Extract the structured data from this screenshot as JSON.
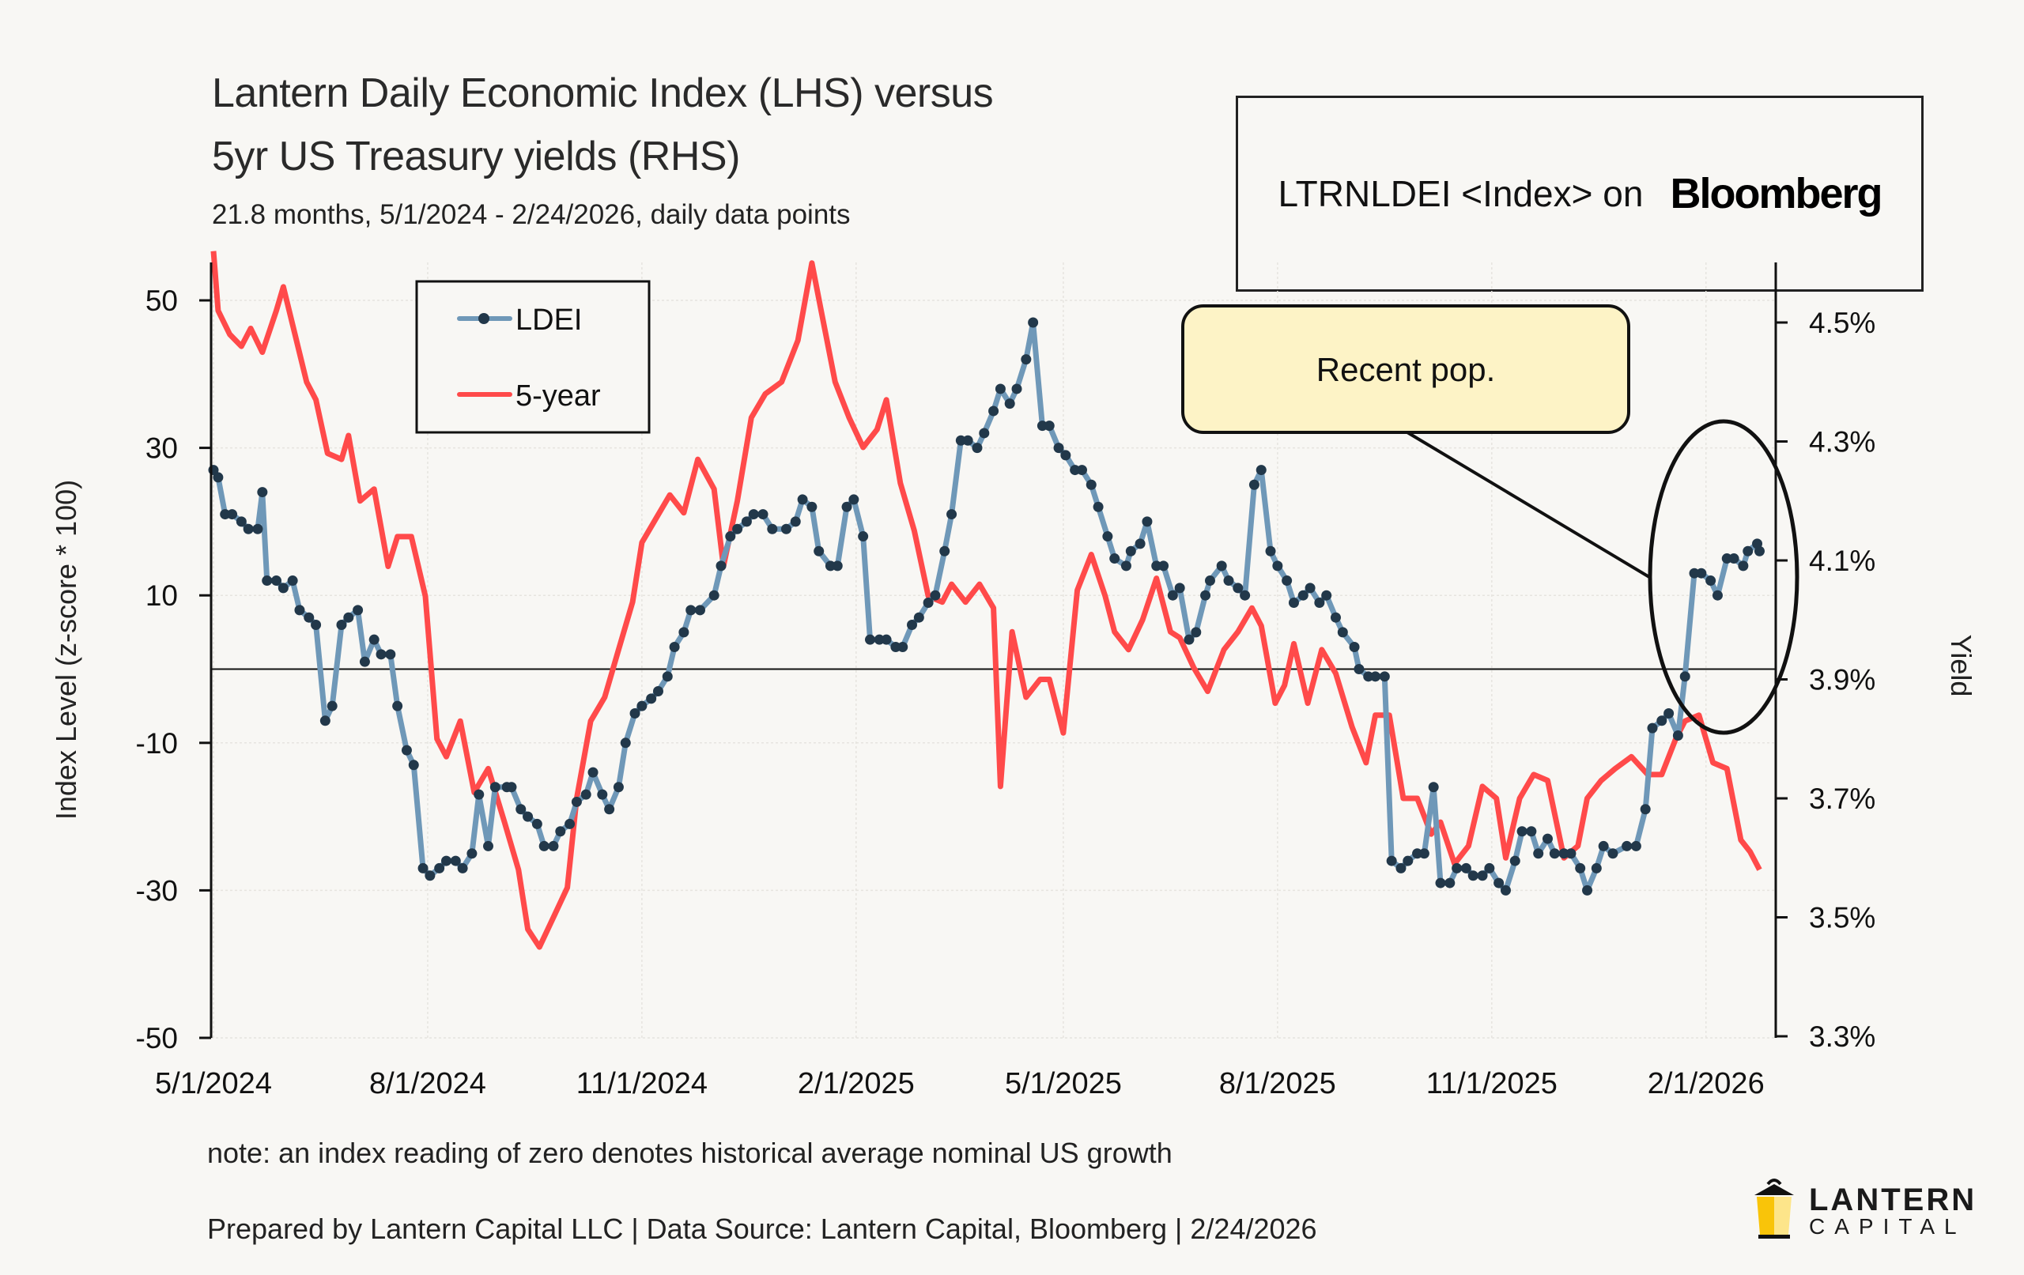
{
  "header": {
    "title_line1": "Lantern Daily Economic Index (LHS) versus",
    "title_line2": "5yr US Treasury yields (RHS)",
    "subtitle": "21.8 months, 5/1/2024 - 2/24/2026, daily data points"
  },
  "bloomberg_box": {
    "ticker": "LTRNLDEI <Index> on",
    "brand": "Bloomberg"
  },
  "annotation": {
    "callout_text": "Recent pop.",
    "callout_fill": "#fdf3c6"
  },
  "footer": {
    "note": "note: an index reading of zero denotes historical average nominal US growth",
    "prepared_by": "Prepared by Lantern Capital LLC | Data Source: Lantern Capital, Bloomberg | 2/24/2026"
  },
  "logo": {
    "name": "LANTERN",
    "sub": "CAPITAL"
  },
  "colors": {
    "ldei_line": "#6f98b8",
    "ldei_marker": "#22384a",
    "yield_line": "#ff4a4a",
    "background": "#f8f7f4"
  },
  "chart_data": {
    "type": "line",
    "title": "Lantern Daily Economic Index (LHS) versus 5yr US Treasury yields (RHS)",
    "xlabel": "",
    "ylabel": "Index Level (z-score * 100)",
    "y2label": "Yield",
    "x_start": "2024-05-01",
    "x_end": "2026-02-24",
    "x_ticks": [
      "5/1/2024",
      "8/1/2024",
      "11/1/2024",
      "2/1/2025",
      "5/1/2025",
      "8/1/2025",
      "11/1/2025",
      "2/1/2026"
    ],
    "x_tick_dates": [
      "2024-05-01",
      "2024-08-01",
      "2024-11-01",
      "2025-02-01",
      "2025-05-01",
      "2025-08-01",
      "2025-11-01",
      "2026-02-01"
    ],
    "ylim": [
      -50,
      55
    ],
    "y_ticks": [
      "50",
      "30",
      "10",
      "-10",
      "-30",
      "-50"
    ],
    "y_tick_values": [
      50,
      30,
      10,
      -10,
      -30,
      -50
    ],
    "y2lim": [
      3.3,
      4.62
    ],
    "y2_ticks": [
      "4.5%",
      "4.3%",
      "4.1%",
      "3.9%",
      "3.7%",
      "3.5%",
      "3.3%"
    ],
    "y2_tick_values": [
      4.5,
      4.3,
      4.1,
      3.9,
      3.7,
      3.5,
      3.3
    ],
    "zero_line": 0,
    "grid": true,
    "legend": {
      "position": "top-left",
      "entries": [
        "LDEI",
        "5-year"
      ]
    },
    "series": [
      {
        "name": "LDEI",
        "axis": "left",
        "dates": [
          "2024-05-01",
          "2024-05-03",
          "2024-05-06",
          "2024-05-09",
          "2024-05-13",
          "2024-05-16",
          "2024-05-20",
          "2024-05-22",
          "2024-05-24",
          "2024-05-28",
          "2024-05-31",
          "2024-06-04",
          "2024-06-07",
          "2024-06-11",
          "2024-06-14",
          "2024-06-18",
          "2024-06-21",
          "2024-06-25",
          "2024-06-28",
          "2024-07-02",
          "2024-07-05",
          "2024-07-09",
          "2024-07-12",
          "2024-07-16",
          "2024-07-19",
          "2024-07-23",
          "2024-07-26",
          "2024-07-30",
          "2024-08-02",
          "2024-08-06",
          "2024-08-09",
          "2024-08-13",
          "2024-08-16",
          "2024-08-20",
          "2024-08-23",
          "2024-08-27",
          "2024-08-30",
          "2024-09-04",
          "2024-09-06",
          "2024-09-10",
          "2024-09-13",
          "2024-09-17",
          "2024-09-20",
          "2024-09-24",
          "2024-09-27",
          "2024-10-01",
          "2024-10-04",
          "2024-10-08",
          "2024-10-11",
          "2024-10-15",
          "2024-10-18",
          "2024-10-22",
          "2024-10-25",
          "2024-10-29",
          "2024-11-01",
          "2024-11-05",
          "2024-11-08",
          "2024-11-12",
          "2024-11-15",
          "2024-11-19",
          "2024-11-22",
          "2024-11-26",
          "2024-12-02",
          "2024-12-05",
          "2024-12-09",
          "2024-12-12",
          "2024-12-16",
          "2024-12-19",
          "2024-12-23",
          "2024-12-27",
          "2025-01-02",
          "2025-01-06",
          "2025-01-09",
          "2025-01-13",
          "2025-01-16",
          "2025-01-21",
          "2025-01-24",
          "2025-01-28",
          "2025-01-31",
          "2025-02-04",
          "2025-02-07",
          "2025-02-11",
          "2025-02-14",
          "2025-02-18",
          "2025-02-21",
          "2025-02-25",
          "2025-02-28",
          "2025-03-04",
          "2025-03-07",
          "2025-03-11",
          "2025-03-14",
          "2025-03-18",
          "2025-03-21",
          "2025-03-25",
          "2025-03-28",
          "2025-04-01",
          "2025-04-04",
          "2025-04-08",
          "2025-04-11",
          "2025-04-15",
          "2025-04-18",
          "2025-04-22",
          "2025-04-25",
          "2025-04-29",
          "2025-05-02",
          "2025-05-06",
          "2025-05-09",
          "2025-05-13",
          "2025-05-16",
          "2025-05-20",
          "2025-05-23",
          "2025-05-28",
          "2025-05-30",
          "2025-06-03",
          "2025-06-06",
          "2025-06-10",
          "2025-06-13",
          "2025-06-17",
          "2025-06-20",
          "2025-06-24",
          "2025-06-27",
          "2025-07-01",
          "2025-07-03",
          "2025-07-08",
          "2025-07-11",
          "2025-07-15",
          "2025-07-18",
          "2025-07-22",
          "2025-07-25",
          "2025-07-29",
          "2025-08-01",
          "2025-08-05",
          "2025-08-08",
          "2025-08-12",
          "2025-08-15",
          "2025-08-19",
          "2025-08-22",
          "2025-08-26",
          "2025-08-29",
          "2025-09-03",
          "2025-09-05",
          "2025-09-09",
          "2025-09-12",
          "2025-09-16",
          "2025-09-19",
          "2025-09-23",
          "2025-09-26",
          "2025-09-30",
          "2025-10-03",
          "2025-10-07",
          "2025-10-10",
          "2025-10-14",
          "2025-10-17",
          "2025-10-21",
          "2025-10-24",
          "2025-10-28",
          "2025-10-31",
          "2025-11-04",
          "2025-11-07",
          "2025-11-11",
          "2025-11-14",
          "2025-11-18",
          "2025-11-21",
          "2025-11-25",
          "2025-11-28",
          "2025-12-02",
          "2025-12-05",
          "2025-12-09",
          "2025-12-12",
          "2025-12-16",
          "2025-12-19",
          "2025-12-23",
          "2025-12-29",
          "2026-01-02",
          "2026-01-06",
          "2026-01-09",
          "2026-01-13",
          "2026-01-16",
          "2026-01-20",
          "2026-01-23",
          "2026-01-27",
          "2026-01-30",
          "2026-02-03",
          "2026-02-06",
          "2026-02-10",
          "2026-02-13",
          "2026-02-17",
          "2026-02-19",
          "2026-02-23",
          "2026-02-24"
        ],
        "values": [
          27,
          26,
          21,
          21,
          20,
          19,
          19,
          24,
          12,
          12,
          11,
          12,
          8,
          7,
          6,
          -7,
          -5,
          6,
          7,
          8,
          1,
          4,
          2,
          2,
          -5,
          -11,
          -13,
          -27,
          -28,
          -27,
          -26,
          -26,
          -27,
          -25,
          -17,
          -24,
          -16,
          -16,
          -16,
          -19,
          -20,
          -21,
          -24,
          -24,
          -22,
          -21,
          -18,
          -17,
          -14,
          -17,
          -19,
          -16,
          -10,
          -6,
          -5,
          -4,
          -3,
          -1,
          3,
          5,
          8,
          8,
          10,
          14,
          18,
          19,
          20,
          21,
          21,
          19,
          19,
          20,
          23,
          22,
          16,
          14,
          14,
          22,
          23,
          18,
          4,
          4,
          4,
          3,
          3,
          6,
          7,
          9,
          10,
          16,
          21,
          31,
          31,
          30,
          32,
          35,
          38,
          36,
          38,
          42,
          47,
          33,
          33,
          30,
          29,
          27,
          27,
          25,
          22,
          18,
          15,
          14,
          16,
          17,
          20,
          14,
          14,
          10,
          11,
          4,
          5,
          10,
          12,
          14,
          12,
          11,
          10,
          25,
          27,
          16,
          14,
          12,
          9,
          10,
          11,
          9,
          10,
          7,
          5,
          3,
          0,
          -1,
          -1,
          -1,
          -26,
          -27,
          -26,
          -25,
          -25,
          -16,
          -29,
          -29,
          -27,
          -27,
          -28,
          -28,
          -27,
          -29,
          -30,
          -26,
          -22,
          -22,
          -25,
          -23,
          -25,
          -25,
          -25,
          -27,
          -30,
          -27,
          -24,
          -25,
          -24,
          -24,
          -19,
          -8,
          -7,
          -6,
          -9,
          -1,
          13,
          13,
          12,
          10,
          15,
          15,
          14,
          16,
          17,
          16,
          18,
          21,
          21
        ],
        "marker": "dot"
      },
      {
        "name": "5-year",
        "axis": "right",
        "dates": [
          "2024-05-01",
          "2024-05-03",
          "2024-05-08",
          "2024-05-13",
          "2024-05-17",
          "2024-05-22",
          "2024-05-28",
          "2024-05-31",
          "2024-06-05",
          "2024-06-10",
          "2024-06-14",
          "2024-06-19",
          "2024-06-25",
          "2024-06-28",
          "2024-07-03",
          "2024-07-09",
          "2024-07-15",
          "2024-07-19",
          "2024-07-25",
          "2024-07-31",
          "2024-08-05",
          "2024-08-09",
          "2024-08-15",
          "2024-08-21",
          "2024-08-27",
          "2024-09-03",
          "2024-09-09",
          "2024-09-13",
          "2024-09-18",
          "2024-09-24",
          "2024-09-30",
          "2024-10-04",
          "2024-10-10",
          "2024-10-16",
          "2024-10-22",
          "2024-10-28",
          "2024-11-01",
          "2024-11-07",
          "2024-11-13",
          "2024-11-19",
          "2024-11-25",
          "2024-12-02",
          "2024-12-06",
          "2024-12-12",
          "2024-12-18",
          "2024-12-24",
          "2024-12-31",
          "2025-01-07",
          "2025-01-13",
          "2025-01-17",
          "2025-01-23",
          "2025-01-29",
          "2025-02-04",
          "2025-02-10",
          "2025-02-14",
          "2025-02-20",
          "2025-02-26",
          "2025-03-04",
          "2025-03-10",
          "2025-03-14",
          "2025-03-20",
          "2025-03-26",
          "2025-04-01",
          "2025-04-04",
          "2025-04-09",
          "2025-04-15",
          "2025-04-21",
          "2025-04-25",
          "2025-05-01",
          "2025-05-07",
          "2025-05-13",
          "2025-05-19",
          "2025-05-23",
          "2025-05-29",
          "2025-06-04",
          "2025-06-10",
          "2025-06-16",
          "2025-06-20",
          "2025-06-26",
          "2025-07-02",
          "2025-07-09",
          "2025-07-15",
          "2025-07-21",
          "2025-07-25",
          "2025-07-31",
          "2025-08-04",
          "2025-08-08",
          "2025-08-14",
          "2025-08-20",
          "2025-08-26",
          "2025-09-02",
          "2025-09-08",
          "2025-09-12",
          "2025-09-18",
          "2025-09-24",
          "2025-09-30",
          "2025-10-06",
          "2025-10-10",
          "2025-10-16",
          "2025-10-22",
          "2025-10-28",
          "2025-11-03",
          "2025-11-07",
          "2025-11-13",
          "2025-11-19",
          "2025-11-25",
          "2025-12-02",
          "2025-12-08",
          "2025-12-12",
          "2025-12-18",
          "2025-12-24",
          "2025-12-31",
          "2026-01-07",
          "2026-01-13",
          "2026-01-19",
          "2026-01-23",
          "2026-01-29",
          "2026-02-04",
          "2026-02-10",
          "2026-02-16",
          "2026-02-20",
          "2026-02-24"
        ],
        "values": [
          4.62,
          4.52,
          4.48,
          4.46,
          4.49,
          4.45,
          4.52,
          4.56,
          4.48,
          4.4,
          4.37,
          4.28,
          4.27,
          4.31,
          4.2,
          4.22,
          4.09,
          4.14,
          4.14,
          4.04,
          3.8,
          3.77,
          3.83,
          3.71,
          3.75,
          3.66,
          3.58,
          3.48,
          3.45,
          3.5,
          3.55,
          3.7,
          3.83,
          3.87,
          3.95,
          4.03,
          4.13,
          4.17,
          4.21,
          4.18,
          4.27,
          4.22,
          4.09,
          4.2,
          4.34,
          4.38,
          4.4,
          4.47,
          4.6,
          4.52,
          4.4,
          4.34,
          4.29,
          4.32,
          4.37,
          4.23,
          4.15,
          4.04,
          4.03,
          4.06,
          4.03,
          4.06,
          4.02,
          3.72,
          3.98,
          3.87,
          3.9,
          3.9,
          3.81,
          4.05,
          4.11,
          4.04,
          3.98,
          3.95,
          4.0,
          4.07,
          3.98,
          3.97,
          3.92,
          3.88,
          3.95,
          3.98,
          4.02,
          3.99,
          3.86,
          3.89,
          3.96,
          3.86,
          3.95,
          3.91,
          3.82,
          3.76,
          3.84,
          3.84,
          3.7,
          3.7,
          3.64,
          3.66,
          3.59,
          3.62,
          3.72,
          3.7,
          3.6,
          3.7,
          3.74,
          3.73,
          3.6,
          3.62,
          3.7,
          3.73,
          3.75,
          3.77,
          3.74,
          3.74,
          3.8,
          3.83,
          3.84,
          3.76,
          3.75,
          3.63,
          3.61,
          3.58
        ]
      }
    ]
  }
}
